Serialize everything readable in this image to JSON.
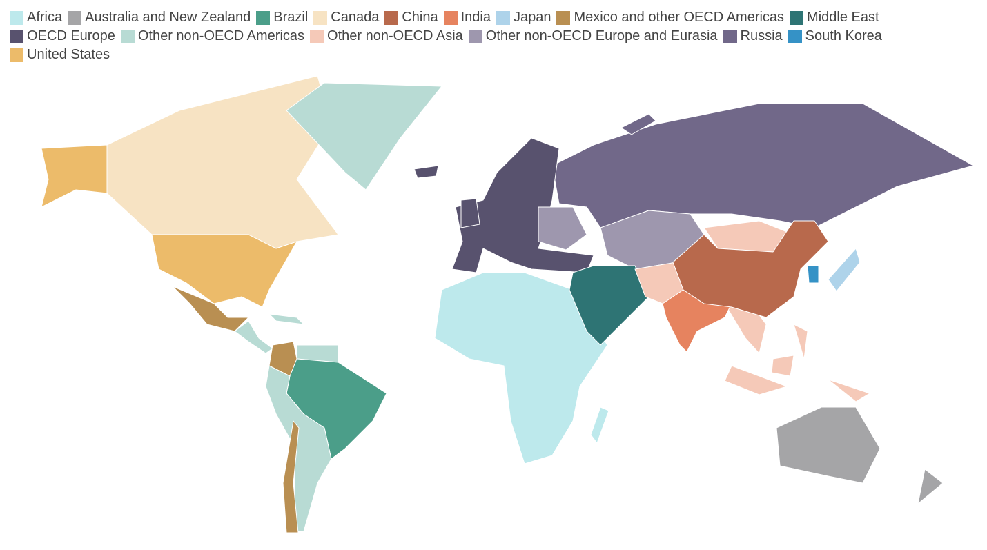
{
  "legend": {
    "items": [
      {
        "name": "Africa",
        "color": "#bde9ec"
      },
      {
        "name": "Australia and New Zealand",
        "color": "#a5a5a7"
      },
      {
        "name": "Brazil",
        "color": "#4b9e89"
      },
      {
        "name": "Canada",
        "color": "#f7e3c3"
      },
      {
        "name": "China",
        "color": "#b8694c"
      },
      {
        "name": "India",
        "color": "#e6835f"
      },
      {
        "name": "Japan",
        "color": "#aed3ea"
      },
      {
        "name": "Mexico and other OECD Americas",
        "color": "#b98f52"
      },
      {
        "name": "Middle East",
        "color": "#2e7474"
      },
      {
        "name": "OECD Europe",
        "color": "#58526e"
      },
      {
        "name": "Other non-OECD Americas",
        "color": "#b8dbd4"
      },
      {
        "name": "Other non-OECD Asia",
        "color": "#f5c9b8"
      },
      {
        "name": "Other non-OECD Europe and Eurasia",
        "color": "#9e97ae"
      },
      {
        "name": "Russia",
        "color": "#716889"
      },
      {
        "name": "South Korea",
        "color": "#3592c6"
      },
      {
        "name": "United States",
        "color": "#ecbb6a"
      }
    ]
  }
}
